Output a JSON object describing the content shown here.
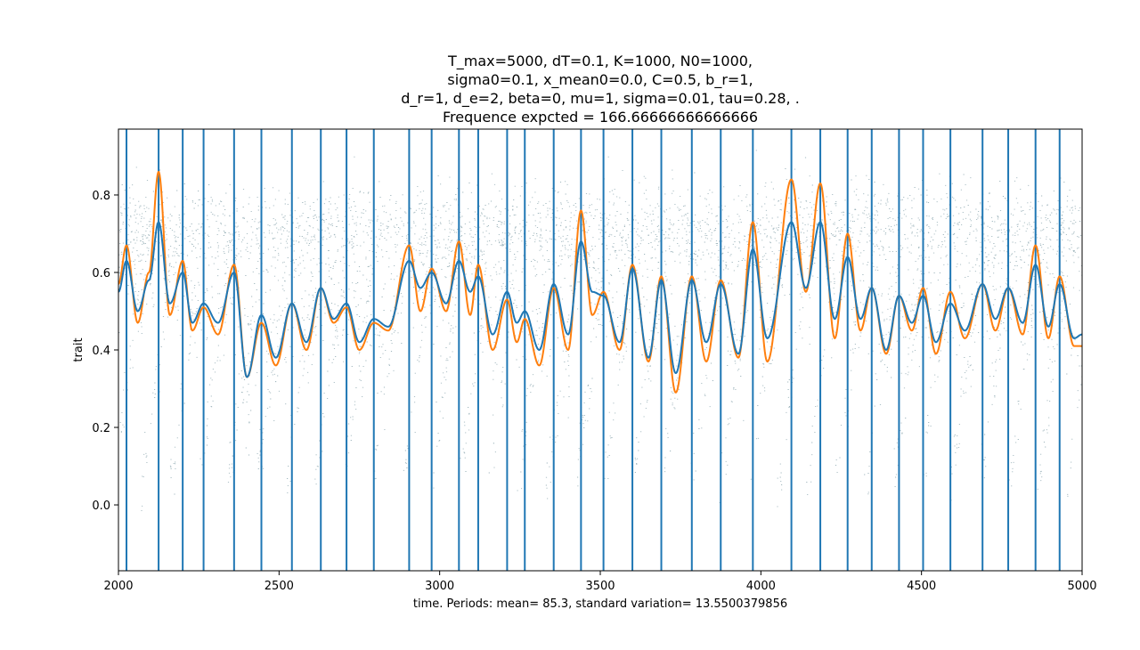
{
  "chart_data": {
    "type": "line",
    "title_lines": [
      "T_max=5000, dT=0.1, K=1000, N0=1000,",
      "sigma0=0.1, x_mean0=0.0, C=0.5, b_r=1,",
      "d_r=1, d_e=2, beta=0, mu=1, sigma=0.01, tau=0.28, .",
      "Frequence expcted = 166.66666666666666"
    ],
    "xlabel": "time. Periods: mean= 85.3, standard variation= 13.5500379856",
    "ylabel": "trait",
    "xlim": [
      2000,
      5000
    ],
    "ylim": [
      -0.17,
      0.97
    ],
    "xticks": [
      2000,
      2500,
      3000,
      3500,
      4000,
      4500,
      5000
    ],
    "xtick_labels": [
      "2000",
      "2500",
      "3000",
      "3500",
      "4000",
      "4500",
      "5000"
    ],
    "yticks": [
      0.0,
      0.2,
      0.4,
      0.6,
      0.8
    ],
    "ytick_labels": [
      "0.0",
      "0.2",
      "0.4",
      "0.6",
      "0.8"
    ],
    "grid": false,
    "colors": {
      "mean_line": "#1f77b4",
      "second_line": "#ff7f0e",
      "period_markers": "#1f77b4",
      "scatter": "#2f5f6f"
    },
    "period_markers_x": [
      2025,
      2125,
      2200,
      2265,
      2360,
      2445,
      2540,
      2630,
      2710,
      2795,
      2905,
      2975,
      3060,
      3120,
      3210,
      3265,
      3355,
      3440,
      3510,
      3600,
      3690,
      3785,
      3875,
      3975,
      4095,
      4185,
      4270,
      4345,
      4430,
      4505,
      4590,
      4690,
      4770,
      4855,
      4930
    ],
    "series": [
      {
        "x": [
          2000,
          2025,
          2060,
          2095,
          2125,
          2160,
          2200,
          2230,
          2265,
          2310,
          2360,
          2400,
          2445,
          2490,
          2540,
          2585,
          2630,
          2670,
          2710,
          2750,
          2795,
          2840,
          2905,
          2940,
          2975,
          3020,
          3060,
          3095,
          3120,
          3165,
          3210,
          3240,
          3265,
          3310,
          3355,
          3400,
          3440,
          3475,
          3510,
          3560,
          3600,
          3650,
          3690,
          3735,
          3785,
          3830,
          3875,
          3930,
          3975,
          4020,
          4095,
          4140,
          4185,
          4230,
          4270,
          4310,
          4345,
          4390,
          4430,
          4470,
          4505,
          4545,
          4590,
          4635,
          4690,
          4730,
          4770,
          4815,
          4855,
          4895,
          4930,
          4975,
          5000
        ],
        "y": [
          0.55,
          0.63,
          0.5,
          0.58,
          0.73,
          0.52,
          0.6,
          0.47,
          0.52,
          0.47,
          0.6,
          0.33,
          0.49,
          0.38,
          0.52,
          0.42,
          0.56,
          0.48,
          0.52,
          0.42,
          0.48,
          0.46,
          0.63,
          0.56,
          0.6,
          0.52,
          0.63,
          0.55,
          0.59,
          0.44,
          0.55,
          0.47,
          0.5,
          0.4,
          0.57,
          0.44,
          0.68,
          0.55,
          0.54,
          0.42,
          0.61,
          0.38,
          0.58,
          0.34,
          0.58,
          0.42,
          0.57,
          0.39,
          0.66,
          0.43,
          0.73,
          0.56,
          0.73,
          0.48,
          0.64,
          0.48,
          0.56,
          0.4,
          0.54,
          0.47,
          0.54,
          0.42,
          0.52,
          0.45,
          0.57,
          0.48,
          0.56,
          0.47,
          0.62,
          0.46,
          0.57,
          0.43,
          0.44
        ]
      },
      {
        "x": [
          2000,
          2025,
          2060,
          2095,
          2125,
          2160,
          2200,
          2230,
          2265,
          2310,
          2360,
          2400,
          2445,
          2490,
          2540,
          2585,
          2630,
          2670,
          2710,
          2750,
          2795,
          2840,
          2905,
          2940,
          2975,
          3020,
          3060,
          3095,
          3120,
          3165,
          3210,
          3240,
          3265,
          3310,
          3355,
          3400,
          3440,
          3475,
          3510,
          3560,
          3600,
          3650,
          3690,
          3735,
          3785,
          3830,
          3875,
          3930,
          3975,
          4020,
          4095,
          4140,
          4185,
          4230,
          4270,
          4310,
          4345,
          4390,
          4430,
          4470,
          4505,
          4545,
          4590,
          4635,
          4690,
          4730,
          4770,
          4815,
          4855,
          4895,
          4930,
          4975,
          5000
        ],
        "y": [
          0.57,
          0.67,
          0.47,
          0.6,
          0.86,
          0.49,
          0.63,
          0.45,
          0.51,
          0.44,
          0.62,
          0.33,
          0.47,
          0.36,
          0.52,
          0.4,
          0.56,
          0.47,
          0.51,
          0.4,
          0.47,
          0.45,
          0.67,
          0.5,
          0.61,
          0.5,
          0.68,
          0.49,
          0.62,
          0.4,
          0.53,
          0.42,
          0.48,
          0.36,
          0.56,
          0.4,
          0.76,
          0.49,
          0.55,
          0.4,
          0.62,
          0.37,
          0.59,
          0.29,
          0.59,
          0.37,
          0.58,
          0.38,
          0.73,
          0.37,
          0.84,
          0.55,
          0.83,
          0.43,
          0.7,
          0.45,
          0.56,
          0.39,
          0.54,
          0.45,
          0.56,
          0.39,
          0.55,
          0.43,
          0.57,
          0.45,
          0.56,
          0.44,
          0.67,
          0.43,
          0.59,
          0.41,
          0.41
        ]
      }
    ]
  }
}
